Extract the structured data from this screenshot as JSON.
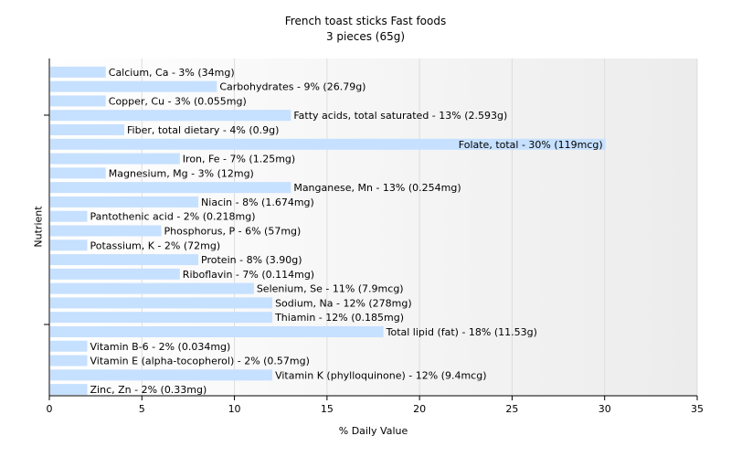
{
  "chart_data": {
    "type": "bar",
    "orientation": "horizontal",
    "title": "French toast sticks Fast foods",
    "subtitle": "3 pieces (65g)",
    "xlabel": "% Daily Value",
    "ylabel": "Nutrient",
    "xlim": [
      0,
      35
    ],
    "xticks": [
      0,
      5,
      10,
      15,
      20,
      25,
      30,
      35
    ],
    "grid": "vertical",
    "bar_color": "#c6e0ff",
    "categories": [
      "Calcium, Ca",
      "Carbohydrates",
      "Copper, Cu",
      "Fatty acids, total saturated",
      "Fiber, total dietary",
      "Folate, total",
      "Iron, Fe",
      "Magnesium, Mg",
      "Manganese, Mn",
      "Niacin",
      "Pantothenic acid",
      "Phosphorus, P",
      "Potassium, K",
      "Protein",
      "Riboflavin",
      "Selenium, Se",
      "Sodium, Na",
      "Thiamin",
      "Total lipid (fat)",
      "Vitamin B-6",
      "Vitamin E (alpha-tocopherol)",
      "Vitamin K (phylloquinone)",
      "Zinc, Zn"
    ],
    "values": [
      3,
      9,
      3,
      13,
      4,
      30,
      7,
      3,
      13,
      8,
      2,
      6,
      2,
      8,
      7,
      11,
      12,
      12,
      18,
      2,
      2,
      12,
      2
    ],
    "data_labels": [
      "Calcium, Ca - 3% (34mg)",
      "Carbohydrates - 9% (26.79g)",
      "Copper, Cu - 3% (0.055mg)",
      "Fatty acids, total saturated - 13% (2.593g)",
      "Fiber, total dietary - 4% (0.9g)",
      "Folate, total - 30% (119mcg)",
      "Iron, Fe - 7% (1.25mg)",
      "Magnesium, Mg - 3% (12mg)",
      "Manganese, Mn - 13% (0.254mg)",
      "Niacin - 8% (1.674mg)",
      "Pantothenic acid - 2% (0.218mg)",
      "Phosphorus, P - 6% (57mg)",
      "Potassium, K - 2% (72mg)",
      "Protein - 8% (3.90g)",
      "Riboflavin - 7% (0.114mg)",
      "Selenium, Se - 11% (7.9mcg)",
      "Sodium, Na - 12% (278mg)",
      "Thiamin - 12% (0.185mg)",
      "Total lipid (fat) - 18% (11.53g)",
      "Vitamin B-6 - 2% (0.034mg)",
      "Vitamin E (alpha-tocopherol) - 2% (0.57mg)",
      "Vitamin K (phylloquinone) - 12% (9.4mcg)",
      "Zinc, Zn - 2% (0.33mg)"
    ]
  }
}
